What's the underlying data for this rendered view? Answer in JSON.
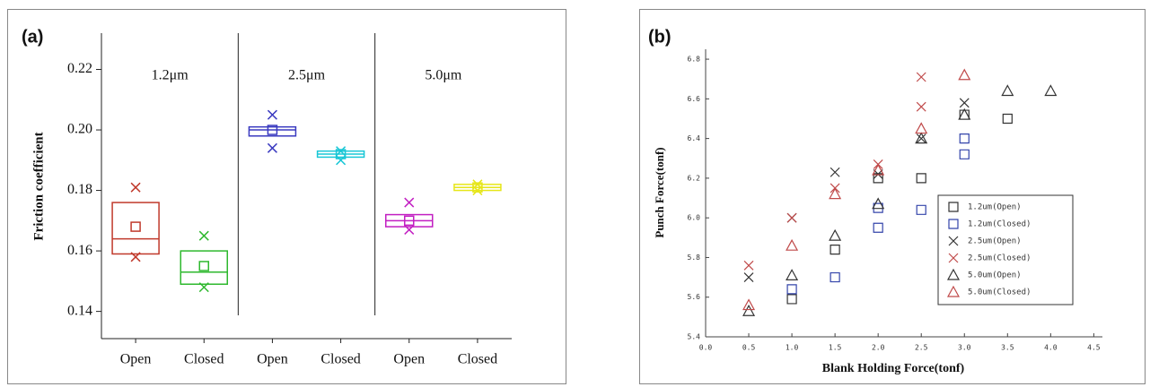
{
  "chart_data": [
    {
      "type": "box",
      "panel_label": "(a)",
      "y_label": "Friction coefficient",
      "categories": [
        "Open",
        "Closed",
        "Open",
        "Closed",
        "Open",
        "Closed"
      ],
      "groups": [
        "1.2μm",
        "2.5μm",
        "5.0μm"
      ],
      "min": [
        0.158,
        0.148,
        0.194,
        0.19,
        0.167,
        0.18
      ],
      "q1": [
        0.159,
        0.149,
        0.198,
        0.191,
        0.168,
        0.18
      ],
      "median": [
        0.164,
        0.153,
        0.2,
        0.192,
        0.17,
        0.181
      ],
      "q3": [
        0.176,
        0.16,
        0.201,
        0.193,
        0.172,
        0.182
      ],
      "max": [
        0.181,
        0.165,
        0.205,
        0.193,
        0.176,
        0.182
      ],
      "mean": [
        0.168,
        0.155,
        0.2,
        0.192,
        0.17,
        0.181
      ],
      "colors": [
        "#c0392b",
        "#2eb82e",
        "#3a3ac0",
        "#19c7d6",
        "#c21fc2",
        "#e6e619"
      ],
      "ylim": [
        0.131,
        0.232
      ],
      "yticks": [
        0.14,
        0.16,
        0.18,
        {
          "value": 0.2,
          "label": "0.20"
        },
        0.22
      ]
    },
    {
      "type": "scatter",
      "panel_label": "(b)",
      "x_label": "Blank Holding Force(tonf)",
      "y_label": "Punch Force(tonf)",
      "xlim": [
        0,
        4.6
      ],
      "ylim": [
        5.4,
        6.85
      ],
      "xticks": [
        {
          "value": 0,
          "label": "0.0"
        },
        0.5,
        {
          "value": 1,
          "label": "1.0"
        },
        1.5,
        {
          "value": 2,
          "label": "2.0"
        },
        2.5,
        {
          "value": 3,
          "label": "3.0"
        },
        3.5,
        {
          "value": 4,
          "label": "4.0"
        },
        4.5
      ],
      "yticks": [
        5.4,
        5.6,
        5.8,
        {
          "value": 6,
          "label": "6.0"
        },
        6.2,
        6.4,
        6.6,
        6.8
      ],
      "series": [
        {
          "name": "1.2um(Open)",
          "color": "#333333",
          "marker": "square",
          "x": [
            1.0,
            1.5,
            2.0,
            2.5,
            3.0,
            3.5
          ],
          "values": [
            5.59,
            5.84,
            6.2,
            6.2,
            6.52,
            6.5
          ]
        },
        {
          "name": "1.2um(Closed)",
          "color": "#3344aa",
          "marker": "square",
          "x": [
            1.0,
            1.5,
            2.0,
            2.0,
            2.5,
            3.0,
            3.0
          ],
          "values": [
            5.64,
            5.7,
            6.05,
            5.95,
            6.04,
            6.4,
            6.32
          ]
        },
        {
          "name": "2.5um(Open)",
          "color": "#333333",
          "marker": "cross",
          "x": [
            0.5,
            1.0,
            1.5,
            2.0,
            2.5,
            3.0
          ],
          "values": [
            5.7,
            6.0,
            6.23,
            6.22,
            6.4,
            6.58
          ]
        },
        {
          "name": "2.5um(Closed)",
          "color": "#c04a4a",
          "marker": "cross",
          "x": [
            0.5,
            1.0,
            1.5,
            2.0,
            2.5,
            2.5
          ],
          "values": [
            5.76,
            6.0,
            6.15,
            6.27,
            6.71,
            6.56
          ]
        },
        {
          "name": "5.0um(Open)",
          "color": "#333333",
          "marker": "triangle",
          "x": [
            0.5,
            1.0,
            1.5,
            2.0,
            2.5,
            3.0,
            3.5,
            4.0
          ],
          "values": [
            5.53,
            5.71,
            5.91,
            6.07,
            6.4,
            6.52,
            6.64,
            6.64
          ]
        },
        {
          "name": "5.0um(Closed)",
          "color": "#c04a4a",
          "marker": "triangle",
          "x": [
            0.5,
            1.0,
            1.5,
            2.0,
            2.5,
            3.0
          ],
          "values": [
            5.56,
            5.86,
            6.12,
            6.24,
            6.45,
            6.72
          ]
        }
      ]
    }
  ]
}
